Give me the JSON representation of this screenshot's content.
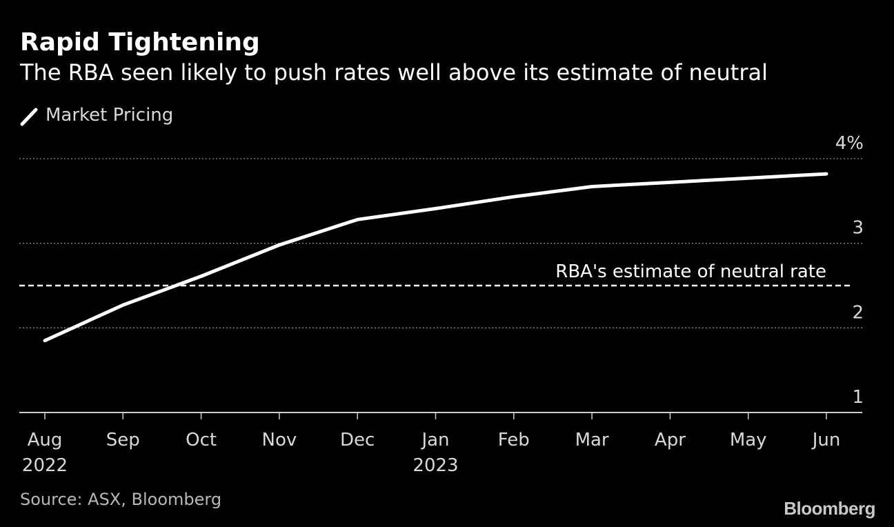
{
  "header": {
    "title": "Rapid Tightening",
    "subtitle": "The RBA seen likely to push rates well above its estimate of neutral"
  },
  "legend": {
    "label": "Market Pricing"
  },
  "footer": {
    "source": "Source: ASX, Bloomberg",
    "brand": "Bloomberg"
  },
  "colors": {
    "background": "#000000",
    "line": "#ffffff",
    "grid": "#8c8c8c",
    "text": "#ffffff",
    "tick_text": "#d9d9d9"
  },
  "chart_data": {
    "type": "line",
    "title": "Rapid Tightening",
    "subtitle": "The RBA seen likely to push rates well above its estimate of neutral",
    "xlabel": "",
    "ylabel": "",
    "x_ticks": [
      {
        "label": "Aug",
        "year": "2022"
      },
      {
        "label": "Sep",
        "year": ""
      },
      {
        "label": "Oct",
        "year": ""
      },
      {
        "label": "Nov",
        "year": ""
      },
      {
        "label": "Dec",
        "year": ""
      },
      {
        "label": "Jan",
        "year": "2023"
      },
      {
        "label": "Feb",
        "year": ""
      },
      {
        "label": "Mar",
        "year": ""
      },
      {
        "label": "Apr",
        "year": ""
      },
      {
        "label": "May",
        "year": ""
      },
      {
        "label": "Jun",
        "year": ""
      }
    ],
    "y_ticks": [
      "1",
      "2",
      "3",
      "4%"
    ],
    "y_tick_values": [
      1,
      2,
      3,
      4
    ],
    "ylim": [
      1,
      4
    ],
    "grid": true,
    "legend_position": "top-left",
    "series": [
      {
        "name": "Market Pricing",
        "x": [
          "Aug 2022",
          "Sep 2022",
          "Oct 2022",
          "Nov 2022",
          "Dec 2022",
          "Jan 2023",
          "Feb 2023",
          "Mar 2023",
          "Apr 2023",
          "May 2023",
          "Jun 2023"
        ],
        "values": [
          1.85,
          2.27,
          2.61,
          2.98,
          3.28,
          3.41,
          3.55,
          3.67,
          3.72,
          3.77,
          3.82
        ]
      }
    ],
    "reference_lines": [
      {
        "name": "RBA's estimate of neutral rate",
        "value": 2.5,
        "style": "dashed"
      }
    ]
  }
}
